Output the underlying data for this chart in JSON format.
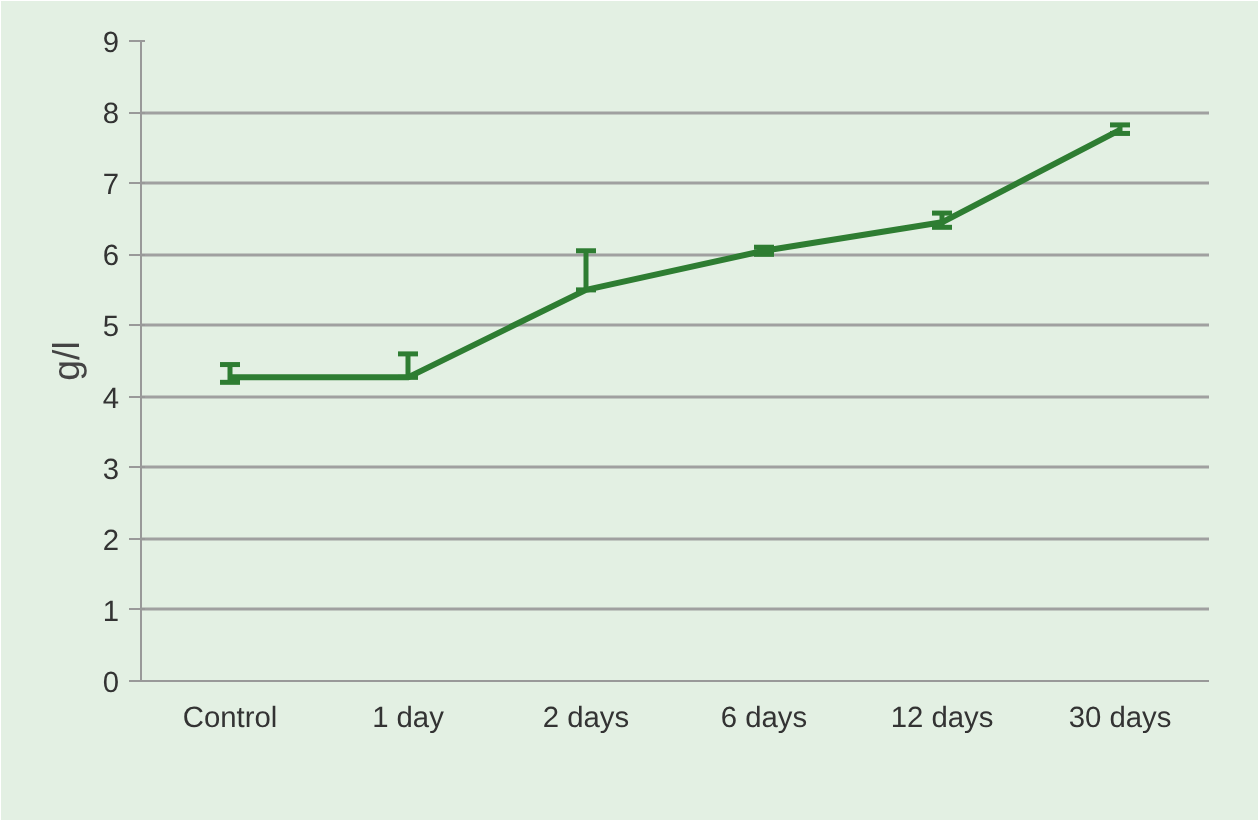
{
  "chart_data": {
    "type": "line",
    "ylabel": "g/l",
    "categories": [
      "Control",
      "1 day",
      "2 days",
      "6 days",
      "12 days",
      "30 days"
    ],
    "series": [
      {
        "color": "#2e7d32",
        "values": [
          4.27,
          4.27,
          5.5,
          6.05,
          6.45,
          7.75
        ],
        "errors": [
          [
            4.2,
            4.45
          ],
          [
            4.27,
            4.6
          ],
          [
            5.5,
            6.05
          ],
          [
            6.0,
            6.1
          ],
          [
            6.38,
            6.58
          ],
          [
            7.7,
            7.82
          ]
        ]
      }
    ],
    "ylim": [
      0,
      9
    ],
    "yticks": [
      0,
      1,
      2,
      3,
      4,
      5,
      6,
      7,
      8,
      9
    ],
    "grid": "y",
    "marker": "none",
    "line_style": "solid"
  }
}
